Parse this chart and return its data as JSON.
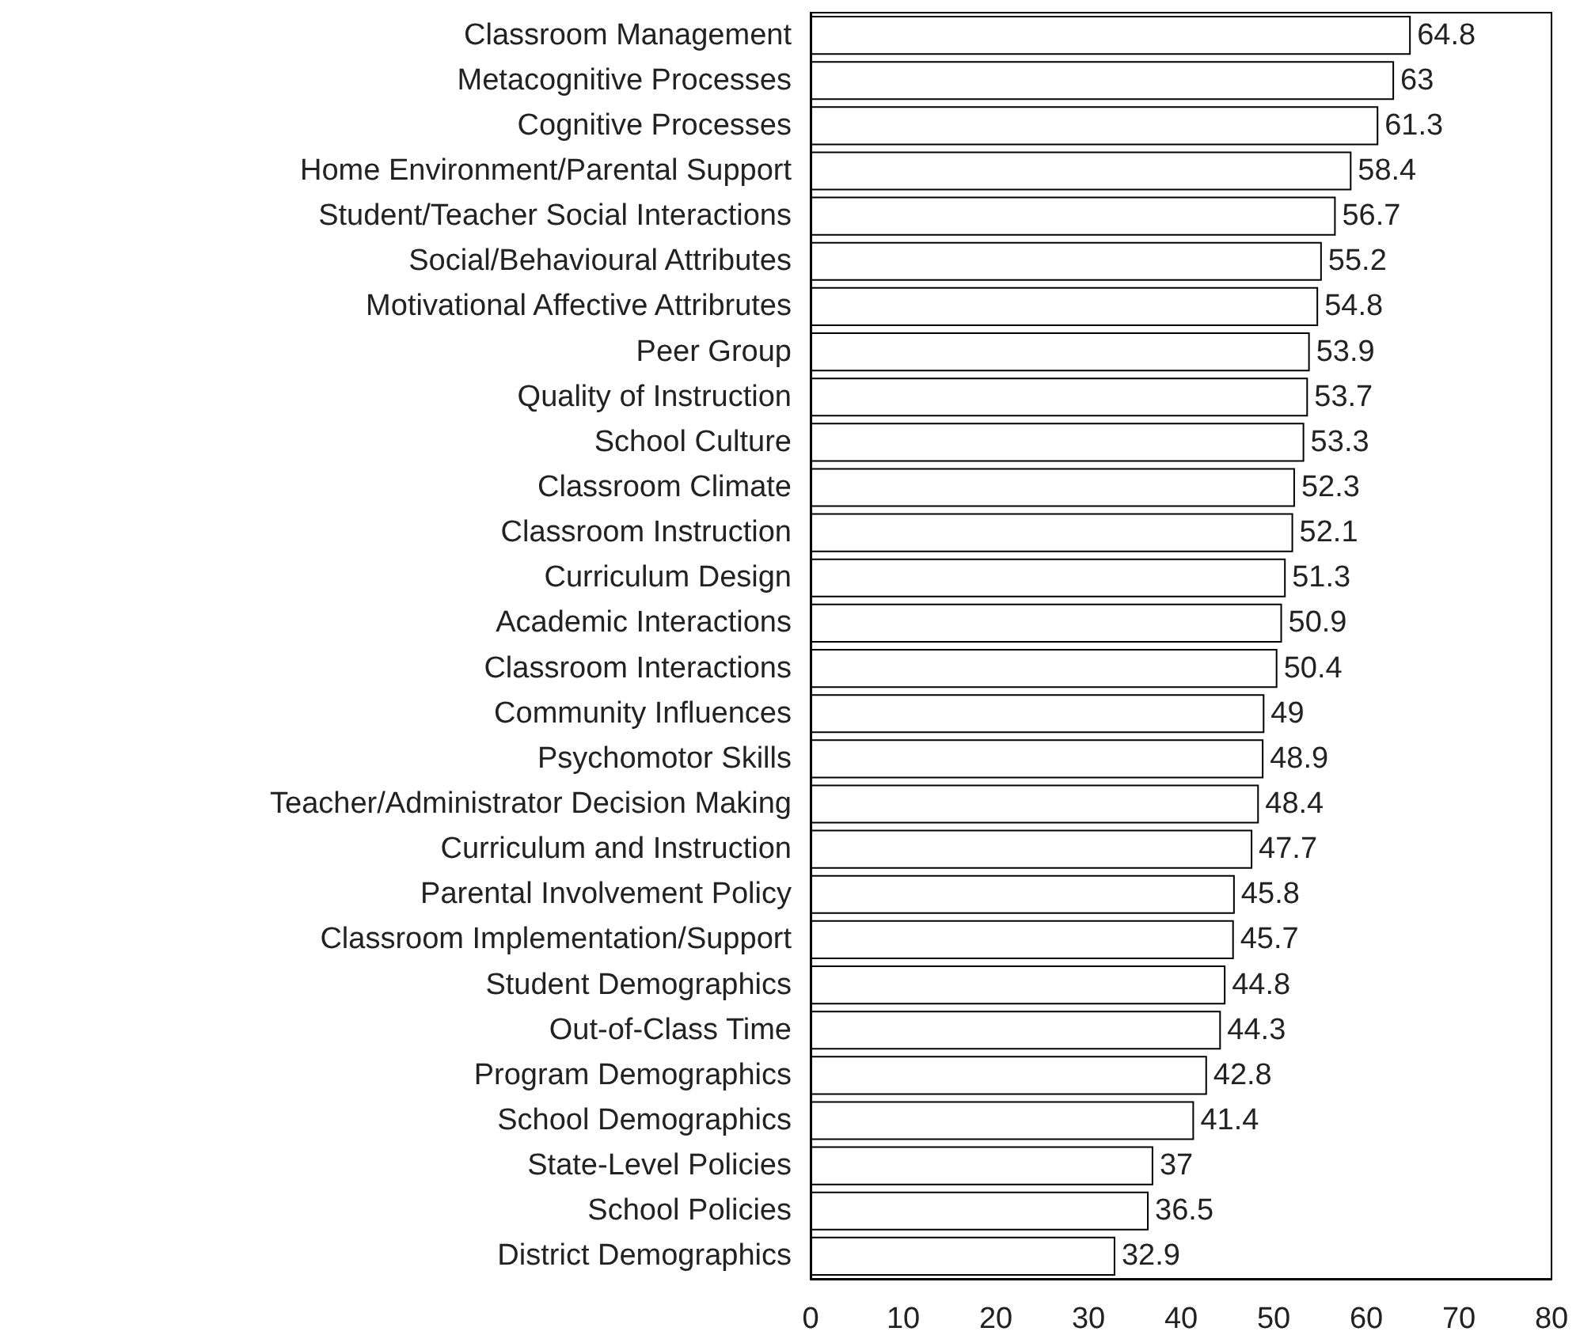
{
  "chart_data": {
    "type": "bar",
    "orientation": "horizontal",
    "categories": [
      "Classroom Management",
      "Metacognitive Processes",
      "Cognitive Processes",
      "Home Environment/Parental Support",
      "Student/Teacher Social Interactions",
      "Social/Behavioural Attributes",
      "Motivational Affective Attribrutes",
      "Peer Group",
      "Quality of Instruction",
      "School Culture",
      "Classroom Climate",
      "Classroom Instruction",
      "Curriculum Design",
      "Academic Interactions",
      "Classroom Interactions",
      "Community Influences",
      "Psychomotor Skills",
      "Teacher/Administrator Decision Making",
      "Curriculum and Instruction",
      "Parental Involvement Policy",
      "Classroom Implementation/Support",
      "Student Demographics",
      "Out-of-Class Time",
      "Program Demographics",
      "School Demographics",
      "State-Level Policies",
      "School Policies",
      "District Demographics"
    ],
    "values": [
      64.8,
      63,
      61.3,
      58.4,
      56.7,
      55.2,
      54.8,
      53.9,
      53.7,
      53.3,
      52.3,
      52.1,
      51.3,
      50.9,
      50.4,
      49,
      48.9,
      48.4,
      47.7,
      45.8,
      45.7,
      44.8,
      44.3,
      42.8,
      41.4,
      37,
      36.5,
      32.9
    ],
    "color": "#ffffff",
    "data_labels": true,
    "xlim": [
      0,
      80
    ],
    "xticks": [
      0,
      10,
      20,
      30,
      40,
      50,
      60,
      70,
      80
    ]
  }
}
